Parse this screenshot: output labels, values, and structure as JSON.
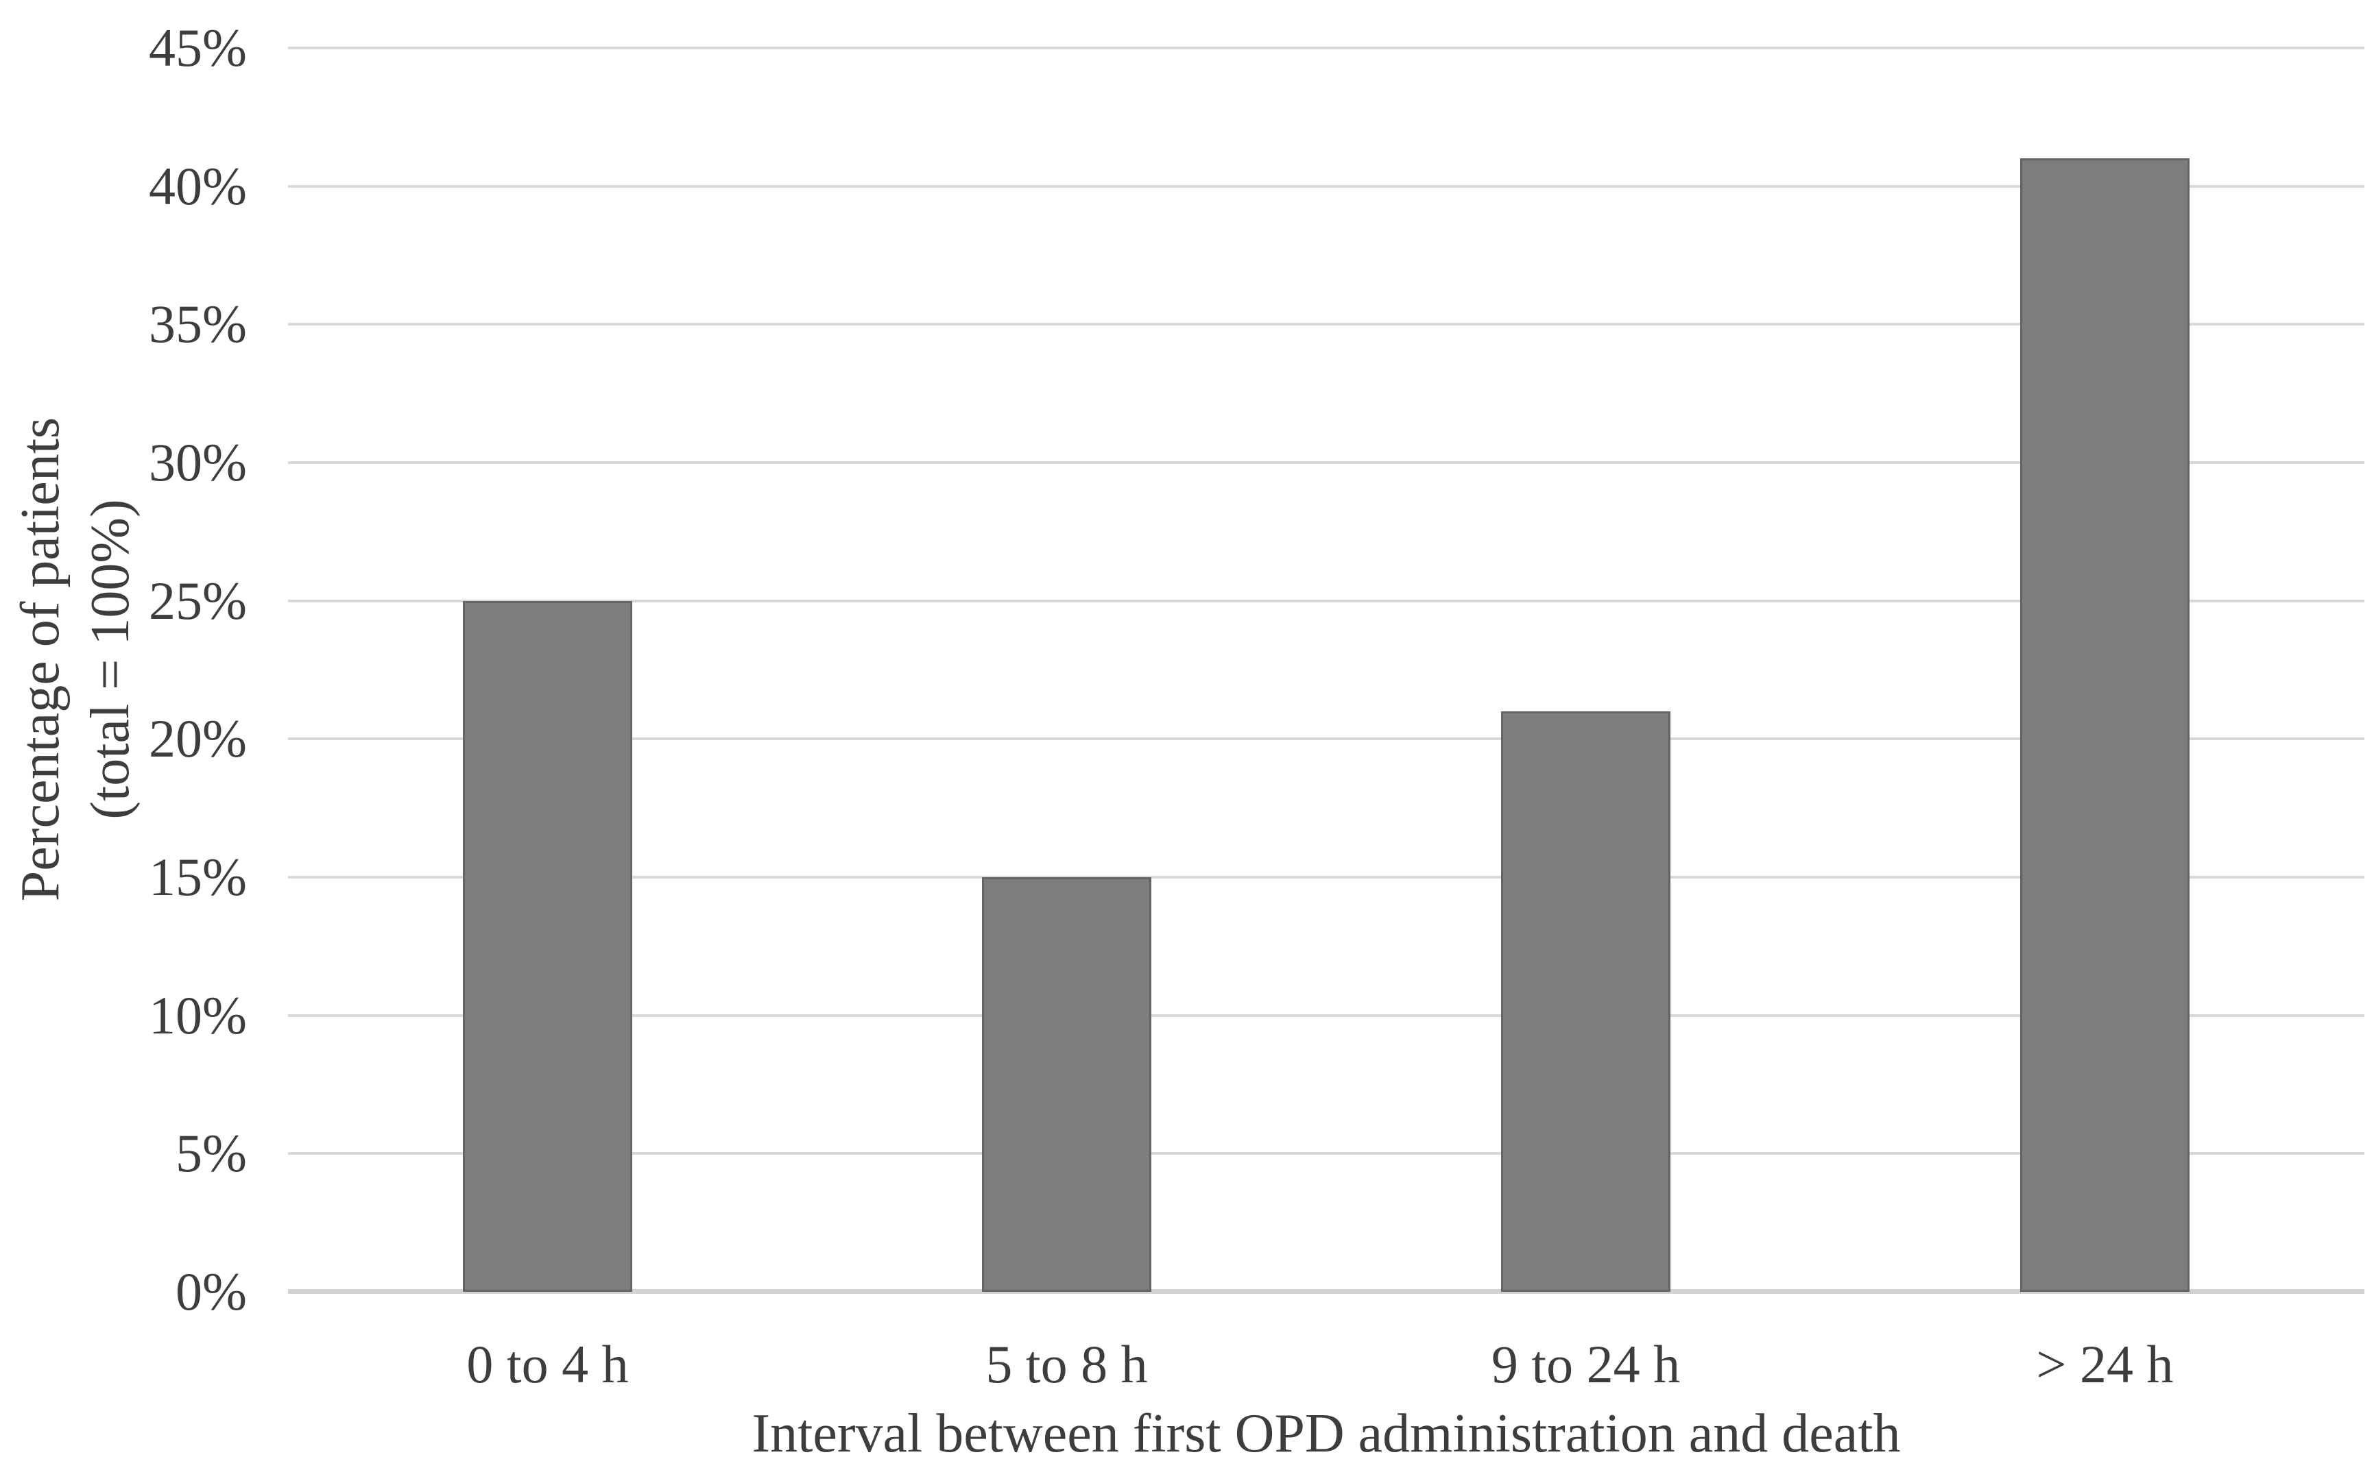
{
  "chart_data": {
    "type": "bar",
    "categories": [
      "0 to 4 h",
      "5 to 8 h",
      "9 to 24 h",
      "> 24 h"
    ],
    "values": [
      25,
      15,
      21,
      41
    ],
    "value_unit": "%",
    "title": "",
    "xlabel": "Interval between first OPD administration and death",
    "ylabel_line1": "Percentage of patients",
    "ylabel_line2": "(total = 100%)",
    "ylim": [
      0,
      45
    ],
    "ytick_step": 5,
    "ytick_labels": [
      "45%",
      "40%",
      "35%",
      "30%",
      "25%",
      "20%",
      "15%",
      "10%",
      "5%",
      "0%"
    ],
    "grid": "horizontal",
    "legend": "none",
    "colors": {
      "bar_fill": "#7d7d7d",
      "bar_border": "#656565",
      "gridline": "#d9d9d9",
      "axis_line": "#d2d2d2",
      "text": "#3d3d3d",
      "background": "#ffffff"
    }
  }
}
